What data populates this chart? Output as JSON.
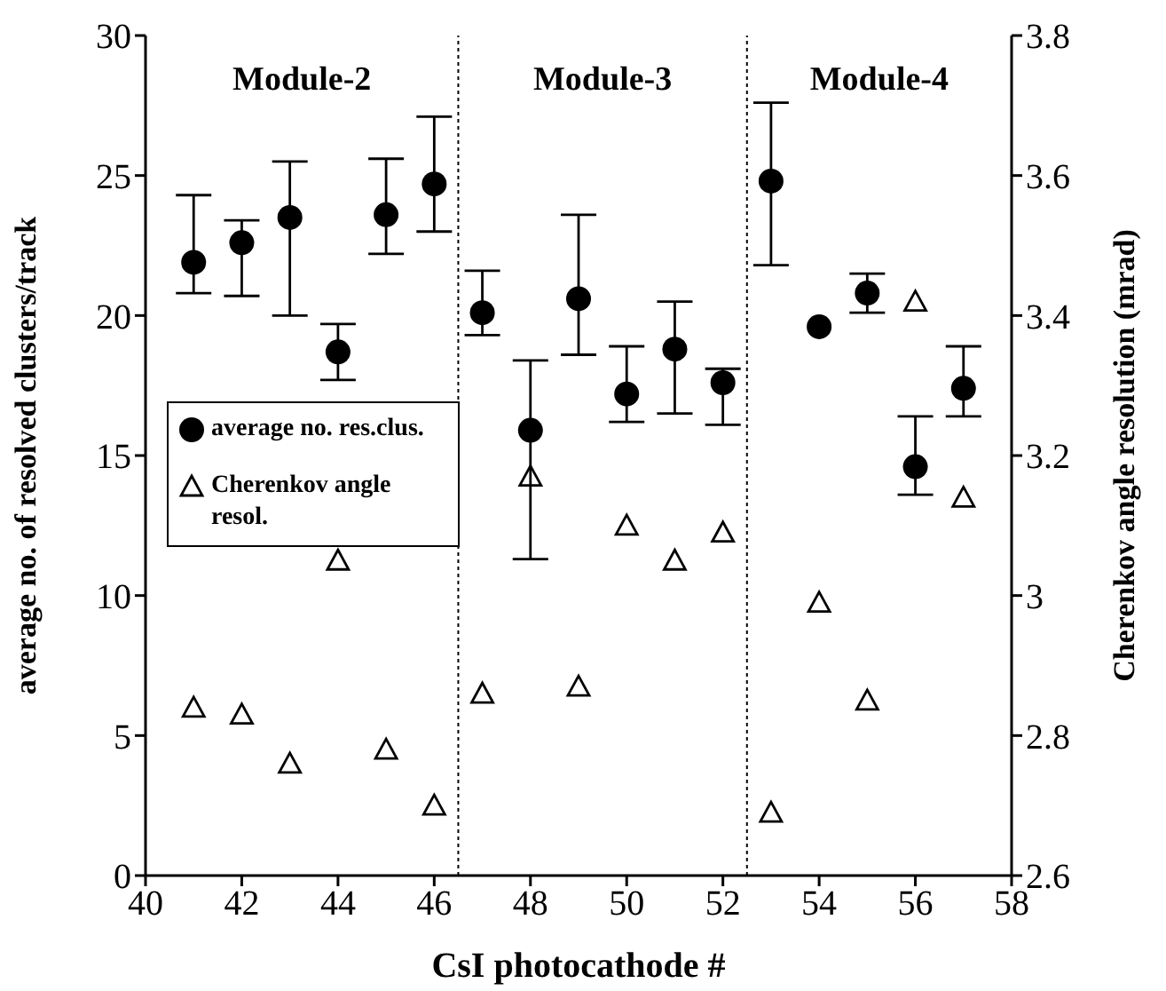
{
  "chart_data": {
    "type": "scatter",
    "xlabel": "CsI photocathode #",
    "ylabel": "average no. of  resolved clusters/track",
    "y2label": "Cherenkov angle resolution (mrad)",
    "x": [
      41,
      42,
      43,
      44,
      45,
      46,
      47,
      48,
      49,
      50,
      51,
      52,
      53,
      54,
      55,
      56,
      57
    ],
    "series": [
      {
        "name": "average no. res.clus.",
        "color": "#000000",
        "marker": "circle",
        "values": [
          21.9,
          22.6,
          23.5,
          18.7,
          23.6,
          24.7,
          20.1,
          15.9,
          20.6,
          17.2,
          18.8,
          17.6,
          24.8,
          19.6,
          20.8,
          14.6,
          17.4
        ],
        "errors": [
          [
            20.8,
            24.3
          ],
          [
            20.7,
            23.4
          ],
          [
            20.0,
            25.5
          ],
          [
            17.7,
            19.7
          ],
          [
            22.2,
            25.6
          ],
          [
            23.0,
            27.1
          ],
          [
            19.3,
            21.6
          ],
          [
            11.3,
            18.4
          ],
          [
            18.6,
            23.6
          ],
          [
            16.2,
            18.9
          ],
          [
            16.5,
            20.5
          ],
          [
            16.1,
            18.1
          ],
          [
            21.8,
            27.6
          ],
          null,
          [
            20.1,
            21.5
          ],
          [
            13.6,
            16.4
          ],
          [
            16.4,
            18.9
          ]
        ]
      },
      {
        "name": "Cherenkov angle resol.",
        "color": "#000000",
        "marker": "triangle",
        "axis": "y2",
        "values": [
          2.84,
          2.83,
          2.76,
          3.05,
          2.78,
          2.7,
          2.86,
          3.17,
          2.87,
          3.1,
          3.05,
          3.09,
          2.69,
          2.99,
          2.85,
          3.42,
          3.14
        ]
      }
    ],
    "xlim": [
      40,
      58
    ],
    "xticks": [
      40,
      42,
      44,
      46,
      48,
      50,
      52,
      54,
      56,
      58
    ],
    "ylim": [
      0,
      30
    ],
    "yticks": [
      0,
      5,
      10,
      15,
      20,
      25,
      30
    ],
    "y2lim": [
      2.6,
      3.8
    ],
    "y2ticks": [
      2.6,
      2.8,
      3,
      3.2,
      3.4,
      3.6,
      3.8
    ],
    "ref_lines": [
      {
        "axis": "x",
        "value": 46.5,
        "line_style": "dotted"
      },
      {
        "axis": "x",
        "value": 52.5,
        "line_style": "dotted"
      }
    ],
    "annotations": [
      "Module-2",
      "Module-3",
      "Module-4"
    ],
    "legend": "left"
  }
}
